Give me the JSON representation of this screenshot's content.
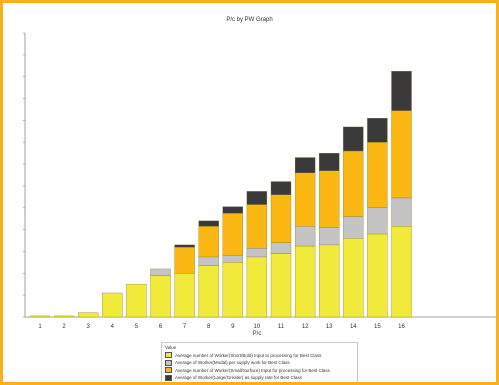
{
  "chart_data": {
    "type": "bar",
    "stacked": true,
    "title": "P/c by PW Graph",
    "xlabel": "P/c",
    "ylabel": "",
    "categories": [
      "1",
      "2",
      "3",
      "4",
      "5",
      "6",
      "7",
      "8",
      "9",
      "10",
      "11",
      "12",
      "13",
      "14",
      "15",
      "16"
    ],
    "series": [
      {
        "name": "Average number of Worker(Short/Bold) Input to processing for Best Class",
        "color": "#f2ea3a",
        "values": [
          1,
          1,
          4,
          22,
          30,
          38,
          40,
          47,
          50,
          55,
          58,
          65,
          66,
          72,
          76,
          83
        ]
      },
      {
        "name": "Average of Worker(Modal) per supply work for Best Class",
        "color": "#c4c4c4",
        "values": [
          0,
          0,
          0,
          0,
          0,
          6,
          0,
          8,
          6,
          8,
          10,
          18,
          16,
          20,
          24,
          26
        ]
      },
      {
        "name": "Average number of Worker(Small/Surface) Input for processing for Best Class",
        "color": "#fbb812",
        "values": [
          0,
          0,
          0,
          0,
          0,
          0,
          24,
          28,
          39,
          40,
          44,
          49,
          52,
          60,
          60,
          80
        ]
      },
      {
        "name": "Average of Worker(Large/Greater) as supply rate for Best Class",
        "color": "#3a3a3a",
        "values": [
          0,
          0,
          0,
          0,
          0,
          0,
          2,
          5,
          6,
          12,
          12,
          14,
          16,
          22,
          22,
          36
        ]
      }
    ],
    "ylim": [
      0,
      260
    ],
    "grid": false,
    "legend_position": "bottom",
    "legend_title": "Value"
  }
}
